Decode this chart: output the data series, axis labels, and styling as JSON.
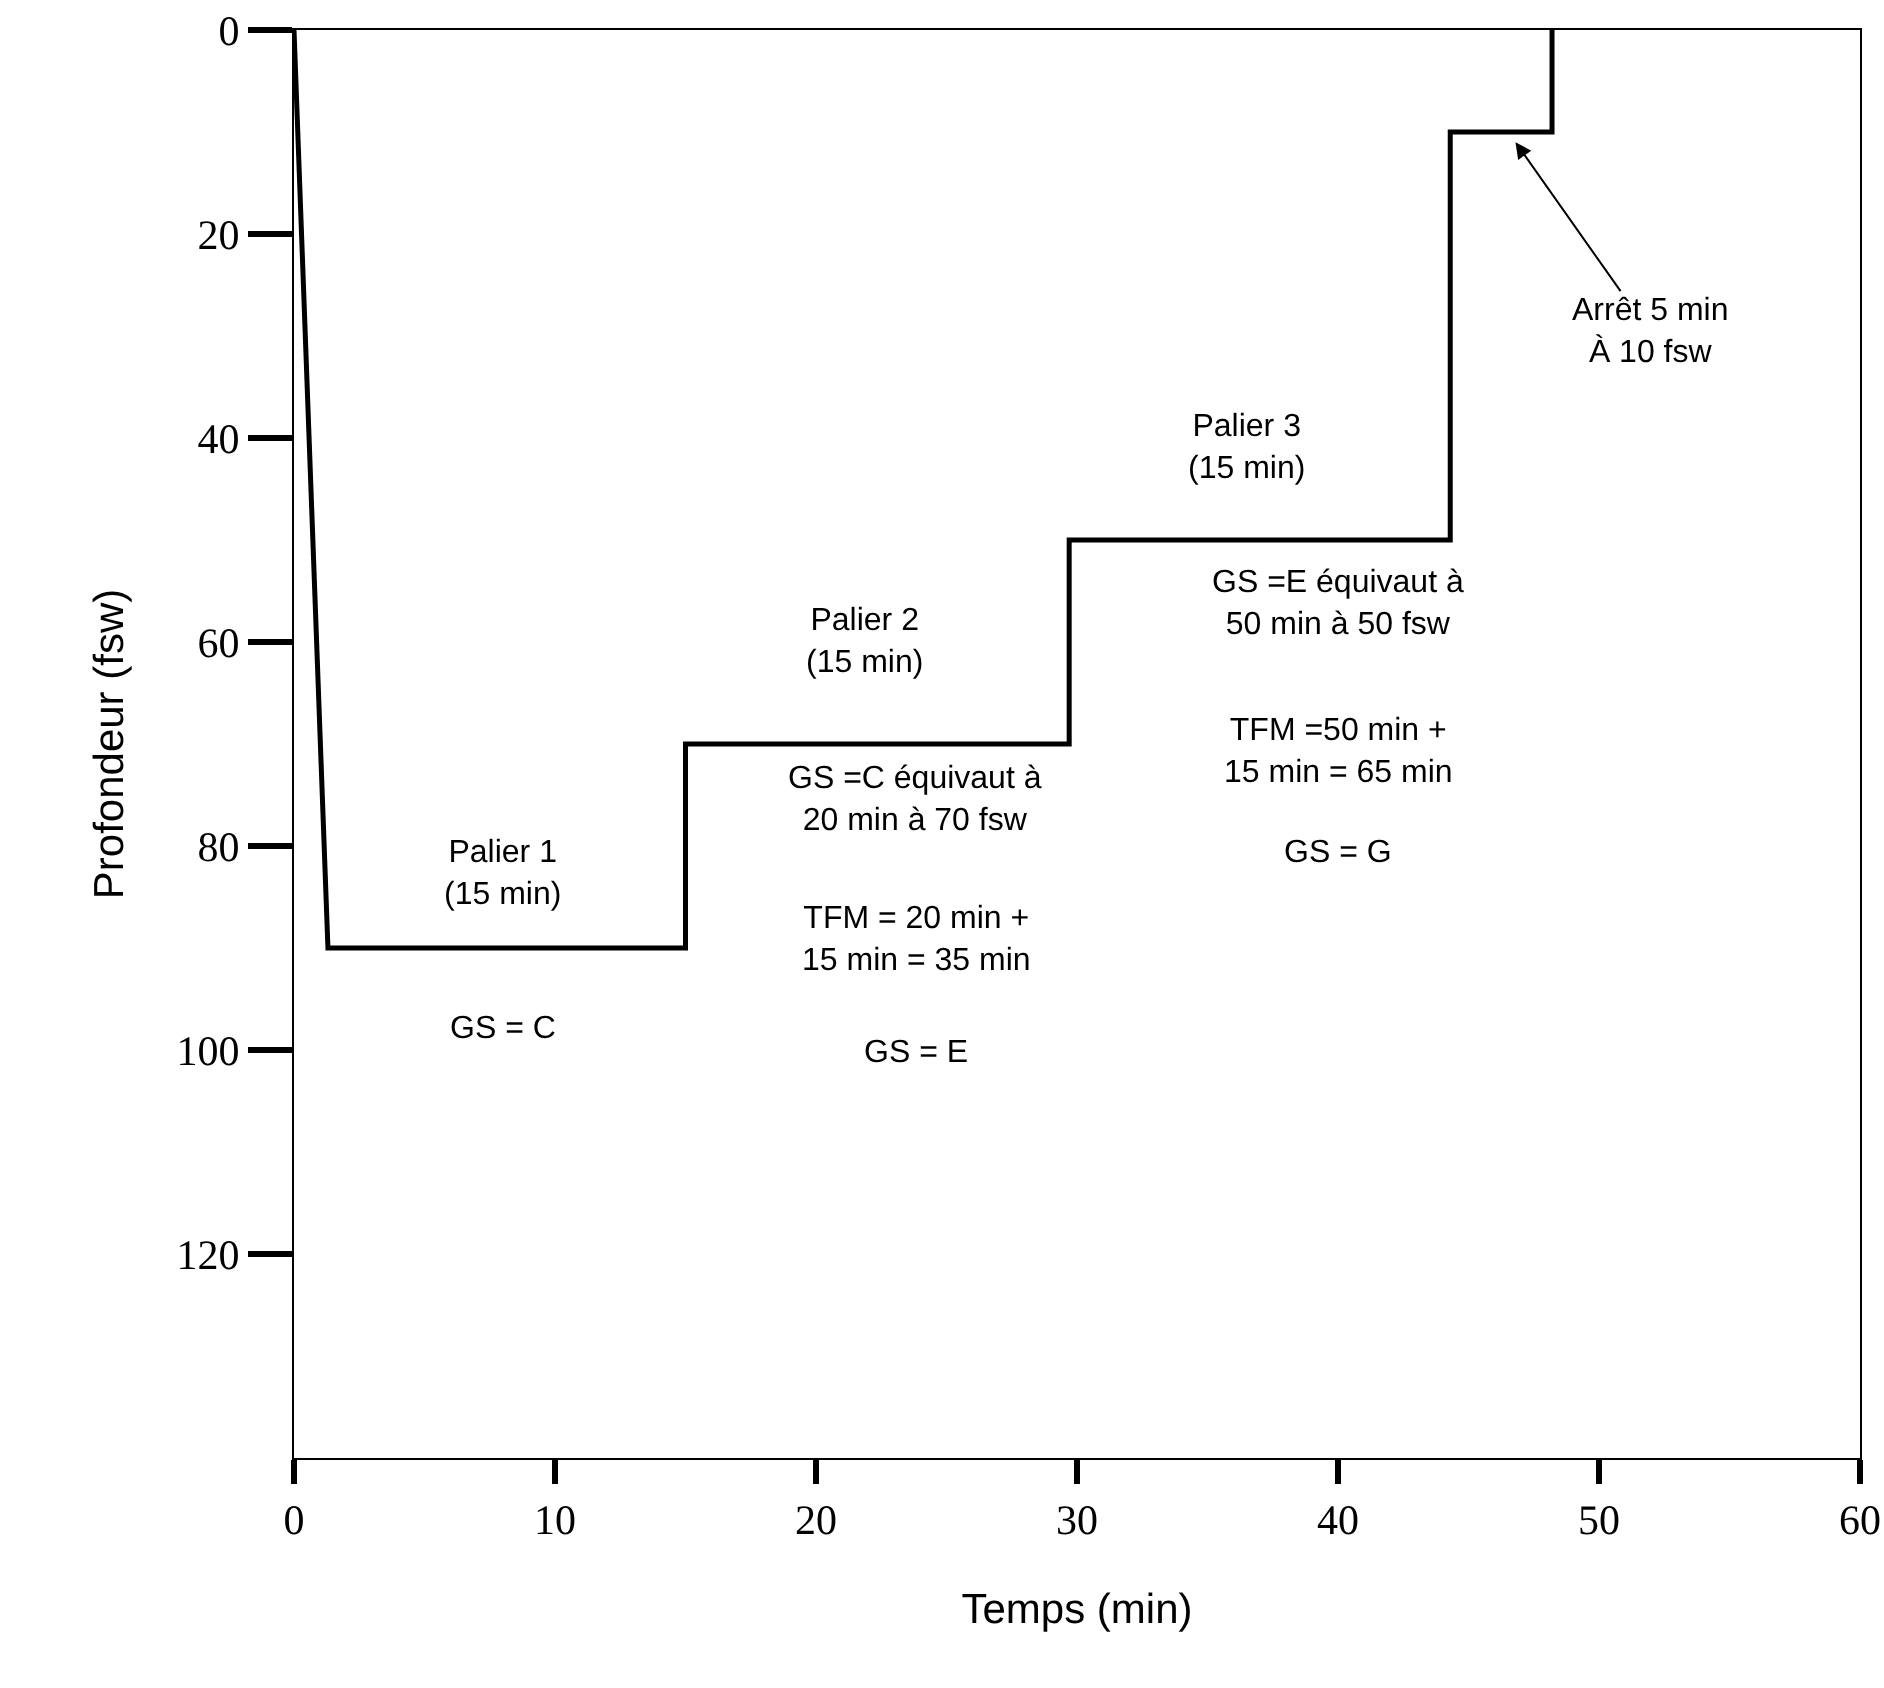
{
  "chart_data": {
    "type": "line",
    "xlabel": "Temps (min)",
    "ylabel": "Profondeur (fsw)",
    "series": [
      {
        "color": "#000000",
        "x": [
          0,
          1.3,
          15,
          15,
          29.7,
          29.7,
          44.3,
          44.3,
          48.2,
          48.2
        ],
        "values": [
          0,
          90,
          90,
          70,
          70,
          50,
          50,
          10,
          10,
          0
        ]
      }
    ],
    "xlim": [
      0,
      60
    ],
    "xticks": [
      0,
      10,
      20,
      30,
      40,
      50,
      60
    ],
    "ylim": [
      140,
      0
    ],
    "yticks": [
      0,
      20,
      40,
      60,
      80,
      100,
      120
    ],
    "line_style": "solid",
    "annotations": [
      "Palier 1\n(15 min)",
      "GS = C",
      "Palier 2\n(15 min)",
      "GS =C équivaut à\n20 min à 70 fsw",
      "TFM = 20 min +\n15 min = 35 min",
      "GS = E",
      "Palier 3\n(15 min)",
      "GS =E équivaut à\n50 min à 50 fsw",
      "TFM =50 min +\n15 min = 65 min",
      "GS = G",
      {
        "text": "Arrêt 5 min\nÀ 10 fsw",
        "x": 46.8,
        "y": 11
      }
    ]
  }
}
